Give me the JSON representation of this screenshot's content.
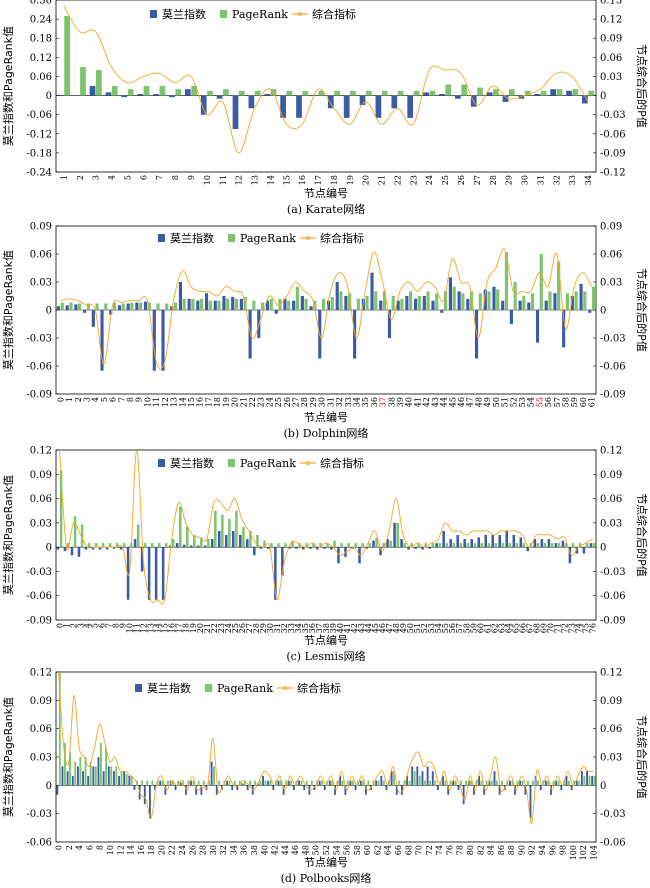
{
  "legend": {
    "moran": "莫兰指数",
    "pagerank": "PageRank",
    "combined": "综合指标"
  },
  "colors": {
    "moran": "#3b5ba5",
    "pagerank": "#7cc46e",
    "combined": "#f5a623"
  },
  "chart_data": [
    {
      "type": "bar",
      "caption": "(a) Karate网络",
      "xlabel": "节点编号",
      "ylabel_left": "莫兰指数和PageRank值",
      "ylabel_right": "节点综合后的P值",
      "ylim_left": [
        -0.24,
        0.3
      ],
      "yticks_left": [
        "-0.24",
        "-0.18",
        "-0.12",
        "-0.06",
        "0",
        "0.06",
        "0.12",
        "0.18",
        "0.24",
        "0.30"
      ],
      "ylim_right": [
        -0.12,
        0.15
      ],
      "yticks_right": [
        "-0.12",
        "-0.09",
        "-0.06",
        "-0.03",
        "0",
        "0.03",
        "0.06",
        "0.09",
        "0.12",
        "0.15"
      ],
      "x_start": 1,
      "x_tick_every": 1,
      "x_tick_offset": 0,
      "highlight_ticks": [],
      "moran": [
        0.002,
        -0.001,
        0.03,
        0.01,
        -0.005,
        0.005,
        0.005,
        -0.005,
        0.02,
        -0.06,
        -0.01,
        -0.105,
        -0.04,
        0.005,
        -0.07,
        -0.07,
        0.0,
        -0.04,
        -0.07,
        -0.03,
        -0.07,
        -0.04,
        -0.07,
        0.01,
        0.005,
        -0.01,
        -0.035,
        0.01,
        -0.02,
        -0.01,
        0.005,
        0.02,
        0.015,
        -0.025
      ],
      "pagerank": [
        0.25,
        0.09,
        0.08,
        0.03,
        0.02,
        0.03,
        0.03,
        0.02,
        0.03,
        0.015,
        0.02,
        0.015,
        0.015,
        0.02,
        0.015,
        0.015,
        0.015,
        0.015,
        0.015,
        0.015,
        0.015,
        0.015,
        0.015,
        0.015,
        0.035,
        0.035,
        0.025,
        0.02,
        0.02,
        0.015,
        0.015,
        0.02,
        0.02,
        0.015
      ],
      "combined": [
        0.14,
        0.1,
        0.1,
        0.045,
        0.02,
        0.03,
        0.035,
        0.02,
        0.03,
        -0.03,
        -0.01,
        -0.09,
        -0.02,
        0.01,
        -0.045,
        -0.045,
        0.01,
        -0.02,
        -0.045,
        -0.01,
        -0.045,
        -0.02,
        -0.045,
        0.04,
        0.04,
        0.035,
        -0.015,
        0.015,
        -0.005,
        0.0,
        0.01,
        0.035,
        0.03,
        -0.01
      ]
    },
    {
      "type": "bar",
      "caption": "(b) Dolphin网络",
      "xlabel": "节点编号",
      "ylabel_left": "莫兰指数和PageRank值",
      "ylabel_right": "节点综合后的P值",
      "ylim_left": [
        -0.09,
        0.09
      ],
      "yticks_left": [
        "-0.09",
        "-0.06",
        "-0.03",
        "0",
        "0.03",
        "0.06",
        "0.09"
      ],
      "ylim_right": [
        -0.09,
        0.09
      ],
      "yticks_right": [
        "-0.09",
        "-0.06",
        "-0.03",
        "0",
        "0.03",
        "0.06",
        "0.09"
      ],
      "x_start": 0,
      "x_tick_every": 1,
      "x_tick_offset": 0,
      "highlight_ticks": [
        37,
        55
      ],
      "moran": [
        0.004,
        0.005,
        0.006,
        -0.003,
        -0.018,
        -0.065,
        -0.005,
        0.005,
        0.007,
        0.008,
        0.009,
        -0.065,
        -0.065,
        0.004,
        0.03,
        0.012,
        0.01,
        0.018,
        0.01,
        0.015,
        0.014,
        0.012,
        -0.052,
        -0.03,
        0.01,
        -0.004,
        0.012,
        0.01,
        0.015,
        0.004,
        -0.052,
        0.01,
        0.03,
        0.015,
        -0.052,
        0.012,
        0.04,
        0.01,
        -0.03,
        0.01,
        0.015,
        0.012,
        0.015,
        0.01,
        -0.003,
        0.035,
        0.02,
        0.012,
        -0.052,
        0.022,
        0.025,
        0.01,
        -0.015,
        0.01,
        0.008,
        -0.035,
        0.01,
        0.018,
        -0.04,
        0.015,
        0.028,
        -0.003
      ],
      "pagerank": [
        0.008,
        0.008,
        0.007,
        0.007,
        0.007,
        0.007,
        0.008,
        0.007,
        0.008,
        0.008,
        0.008,
        0.007,
        0.007,
        0.008,
        0.012,
        0.012,
        0.012,
        0.01,
        0.01,
        0.012,
        0.012,
        0.014,
        0.01,
        0.008,
        0.012,
        0.012,
        0.01,
        0.025,
        0.012,
        0.01,
        0.012,
        0.014,
        0.02,
        0.018,
        0.012,
        0.015,
        0.02,
        0.02,
        0.015,
        0.012,
        0.02,
        0.015,
        0.02,
        0.018,
        0.02,
        0.025,
        0.018,
        0.02,
        0.018,
        0.02,
        0.022,
        0.062,
        0.03,
        0.015,
        0.018,
        0.06,
        0.02,
        0.052,
        0.018,
        0.02,
        0.02,
        0.025
      ],
      "combined": [
        0.01,
        0.012,
        0.01,
        0.005,
        0.0,
        -0.058,
        0.005,
        0.008,
        0.01,
        0.01,
        0.01,
        -0.055,
        -0.055,
        0.01,
        0.042,
        0.025,
        0.02,
        0.02,
        0.015,
        0.025,
        0.02,
        0.015,
        -0.03,
        -0.01,
        0.015,
        0.005,
        0.015,
        0.03,
        0.02,
        0.01,
        -0.03,
        0.02,
        0.04,
        0.025,
        -0.03,
        0.02,
        0.062,
        0.03,
        -0.01,
        0.02,
        0.03,
        0.02,
        0.03,
        0.025,
        0.01,
        0.055,
        0.03,
        0.025,
        -0.03,
        0.03,
        0.045,
        0.065,
        0.02,
        0.02,
        0.02,
        0.04,
        0.025,
        0.06,
        -0.02,
        0.025,
        0.04,
        0.025
      ]
    },
    {
      "type": "bar",
      "caption": "(c) Lesmis网络",
      "xlabel": "节点编号",
      "ylabel_left": "莫兰指数和PageRank值",
      "ylabel_right": "节点综合后的P值",
      "ylim_left": [
        -0.09,
        0.12
      ],
      "yticks_left": [
        "-0.09",
        "-0.06",
        "-0.03",
        "0",
        "0.03",
        "0.06",
        "0.09",
        "0.12"
      ],
      "ylim_right": [
        -0.09,
        0.12
      ],
      "yticks_right": [
        "-0.09",
        "-0.06",
        "-0.03",
        "0",
        "0.03",
        "0.06",
        "0.09",
        "0.12"
      ],
      "x_start": 0,
      "x_tick_every": 1,
      "x_tick_offset": 0,
      "highlight_ticks": [],
      "moran": [
        -0.003,
        -0.005,
        -0.01,
        -0.012,
        -0.003,
        -0.003,
        -0.003,
        -0.003,
        -0.002,
        -0.003,
        -0.065,
        0.01,
        -0.03,
        -0.065,
        -0.065,
        -0.065,
        0.002,
        0.005,
        0.003,
        0.002,
        0.002,
        0.002,
        0.01,
        0.02,
        0.015,
        0.02,
        0.015,
        0.01,
        -0.01,
        -0.002,
        -0.002,
        -0.065,
        -0.035,
        -0.002,
        -0.002,
        -0.003,
        -0.002,
        -0.003,
        -0.002,
        -0.003,
        -0.02,
        -0.012,
        -0.002,
        -0.02,
        -0.002,
        0.008,
        -0.01,
        0.01,
        0.03,
        0.01,
        -0.003,
        -0.002,
        -0.003,
        -0.002,
        0.005,
        0.02,
        0.01,
        0.015,
        0.01,
        0.01,
        0.012,
        0.015,
        0.015,
        0.015,
        0.02,
        0.015,
        0.012,
        -0.005,
        0.01,
        0.01,
        0.01,
        0.005,
        0.008,
        -0.02,
        -0.008,
        -0.008,
        0.005
      ],
      "pagerank": [
        0.095,
        0.005,
        0.038,
        0.028,
        0.005,
        0.005,
        0.005,
        0.005,
        0.005,
        0.005,
        0.005,
        0.028,
        0.005,
        0.005,
        0.005,
        0.005,
        0.01,
        0.05,
        0.025,
        0.015,
        0.012,
        0.01,
        0.045,
        0.04,
        0.035,
        0.045,
        0.025,
        0.02,
        0.015,
        0.008,
        0.005,
        0.005,
        0.005,
        0.008,
        0.005,
        0.005,
        0.005,
        0.005,
        0.005,
        0.008,
        0.005,
        0.005,
        0.005,
        0.005,
        0.005,
        0.012,
        0.005,
        0.008,
        0.03,
        0.005,
        0.005,
        0.005,
        0.005,
        0.005,
        0.005,
        0.005,
        0.005,
        0.005,
        0.005,
        0.005,
        0.005,
        0.005,
        0.005,
        0.005,
        0.005,
        0.005,
        0.005,
        0.005,
        0.005,
        0.005,
        0.005,
        0.005,
        0.005,
        0.005,
        0.005,
        0.005,
        0.005
      ],
      "combined": [
        0.12,
        0.0,
        0.03,
        0.015,
        0.0,
        0.0,
        0.0,
        0.0,
        0.0,
        0.0,
        -0.03,
        0.12,
        -0.02,
        -0.065,
        -0.065,
        -0.065,
        0.01,
        0.055,
        0.03,
        0.015,
        0.012,
        0.01,
        0.055,
        0.055,
        0.045,
        0.06,
        0.035,
        0.02,
        0.005,
        0.0,
        0.0,
        -0.065,
        -0.02,
        0.005,
        0.005,
        0.0,
        0.005,
        0.0,
        0.005,
        0.0,
        -0.01,
        -0.005,
        0.0,
        -0.01,
        0.005,
        0.02,
        -0.005,
        0.02,
        0.06,
        0.015,
        0.0,
        0.005,
        0.0,
        0.005,
        0.01,
        0.03,
        0.02,
        0.02,
        0.015,
        0.02,
        0.02,
        0.02,
        0.015,
        0.02,
        0.02,
        0.02,
        0.015,
        0.0,
        0.015,
        0.015,
        0.015,
        0.01,
        0.012,
        -0.01,
        0.0,
        0.005,
        0.01
      ]
    },
    {
      "type": "bar",
      "caption": "(d) Polbooks网络",
      "xlabel": "节点编号",
      "ylabel_left": "莫兰指数和PageRank值",
      "ylabel_right": "节点综合后的P值",
      "ylim_left": [
        -0.06,
        0.12
      ],
      "yticks_left": [
        "-0.06",
        "-0.03",
        "0",
        "0.03",
        "0.06",
        "0.09",
        "0.12"
      ],
      "ylim_right": [
        -0.06,
        0.12
      ],
      "yticks_right": [
        "-0.06",
        "-0.03",
        "0",
        "0.03",
        "0.06",
        "0.09",
        "0.12"
      ],
      "x_start": 0,
      "x_tick_every": 2,
      "x_tick_offset": 0,
      "highlight_ticks": [],
      "moran": [
        -0.01,
        0.02,
        0.015,
        0.01,
        0.02,
        0.015,
        0.01,
        0.02,
        0.03,
        0.015,
        0.02,
        0.015,
        0.01,
        0.015,
        0.01,
        -0.005,
        -0.015,
        -0.02,
        -0.035,
        -0.005,
        0.005,
        -0.01,
        0.005,
        -0.005,
        0.003,
        -0.01,
        0.005,
        -0.01,
        -0.01,
        -0.005,
        0.025,
        -0.01,
        -0.005,
        0.005,
        -0.005,
        -0.005,
        0.002,
        -0.005,
        -0.01,
        0.002,
        0.01,
        0.005,
        -0.005,
        0.005,
        -0.01,
        0.005,
        -0.005,
        0.005,
        -0.005,
        -0.01,
        -0.005,
        0.005,
        -0.005,
        0.005,
        -0.01,
        0.01,
        -0.01,
        0.005,
        -0.005,
        0.005,
        -0.01,
        -0.005,
        0.005,
        0.01,
        -0.005,
        0.015,
        -0.01,
        -0.01,
        0.01,
        0.02,
        0.02,
        0.015,
        0.02,
        0.015,
        -0.005,
        0.01,
        -0.01,
        0.005,
        -0.005,
        -0.02,
        0.005,
        -0.01,
        0.01,
        -0.01,
        0.005,
        0.015,
        -0.01,
        -0.005,
        0.005,
        -0.01,
        0.005,
        -0.01,
        -0.035,
        0.01,
        -0.005,
        0.005,
        -0.01,
        0.005,
        -0.005,
        0.01,
        -0.005,
        0.005,
        0.015,
        0.015,
        0.01
      ],
      "pagerank": [
        0.12,
        0.045,
        0.035,
        0.025,
        0.03,
        0.03,
        0.025,
        0.02,
        0.045,
        0.04,
        0.02,
        0.02,
        0.015,
        0.012,
        0.01,
        0.005,
        0.005,
        0.005,
        0.005,
        0.005,
        0.005,
        0.005,
        0.005,
        0.005,
        0.005,
        0.005,
        0.005,
        0.005,
        0.005,
        0.005,
        0.02,
        0.005,
        0.005,
        0.005,
        0.005,
        0.005,
        0.005,
        0.005,
        0.005,
        0.005,
        0.005,
        0.005,
        0.005,
        0.005,
        0.005,
        0.005,
        0.005,
        0.005,
        0.005,
        0.005,
        0.005,
        0.005,
        0.005,
        0.005,
        0.005,
        0.005,
        0.005,
        0.005,
        0.005,
        0.005,
        0.005,
        0.005,
        0.005,
        0.005,
        0.005,
        0.015,
        0.005,
        0.005,
        0.005,
        0.015,
        0.01,
        0.005,
        0.005,
        0.005,
        0.005,
        0.005,
        0.005,
        0.005,
        0.005,
        0.005,
        0.005,
        0.005,
        0.005,
        0.005,
        0.005,
        0.005,
        0.005,
        0.005,
        0.005,
        0.005,
        0.005,
        0.005,
        0.005,
        0.005,
        0.005,
        0.005,
        0.005,
        0.005,
        0.005,
        0.005,
        0.005,
        0.005,
        0.01,
        0.01,
        0.01
      ],
      "combined": [
        0.12,
        0.04,
        0.025,
        0.095,
        0.04,
        0.03,
        0.02,
        0.04,
        0.065,
        0.045,
        0.025,
        0.03,
        0.015,
        0.015,
        0.01,
        0.005,
        -0.01,
        -0.015,
        -0.035,
        0.0,
        0.01,
        -0.005,
        0.005,
        0.0,
        0.005,
        -0.005,
        0.01,
        -0.005,
        0.0,
        0.0,
        0.05,
        -0.005,
        0.0,
        0.01,
        0.0,
        0.0,
        0.005,
        0.0,
        -0.005,
        0.005,
        0.015,
        0.01,
        0.0,
        0.01,
        -0.005,
        0.01,
        0.0,
        0.01,
        0.0,
        -0.005,
        0.0,
        0.01,
        0.0,
        0.01,
        -0.005,
        0.015,
        -0.005,
        0.01,
        0.0,
        0.01,
        -0.005,
        0.0,
        0.01,
        0.015,
        0.0,
        0.02,
        -0.005,
        -0.005,
        0.015,
        0.03,
        0.035,
        0.02,
        0.025,
        0.02,
        0.0,
        0.015,
        -0.005,
        0.01,
        0.0,
        -0.015,
        0.01,
        -0.005,
        0.015,
        -0.005,
        0.01,
        0.03,
        -0.005,
        0.0,
        0.01,
        -0.005,
        0.01,
        -0.005,
        -0.04,
        0.015,
        0.0,
        0.01,
        -0.005,
        0.01,
        0.0,
        0.015,
        0.0,
        0.01,
        0.02,
        0.015,
        0.015
      ]
    }
  ]
}
